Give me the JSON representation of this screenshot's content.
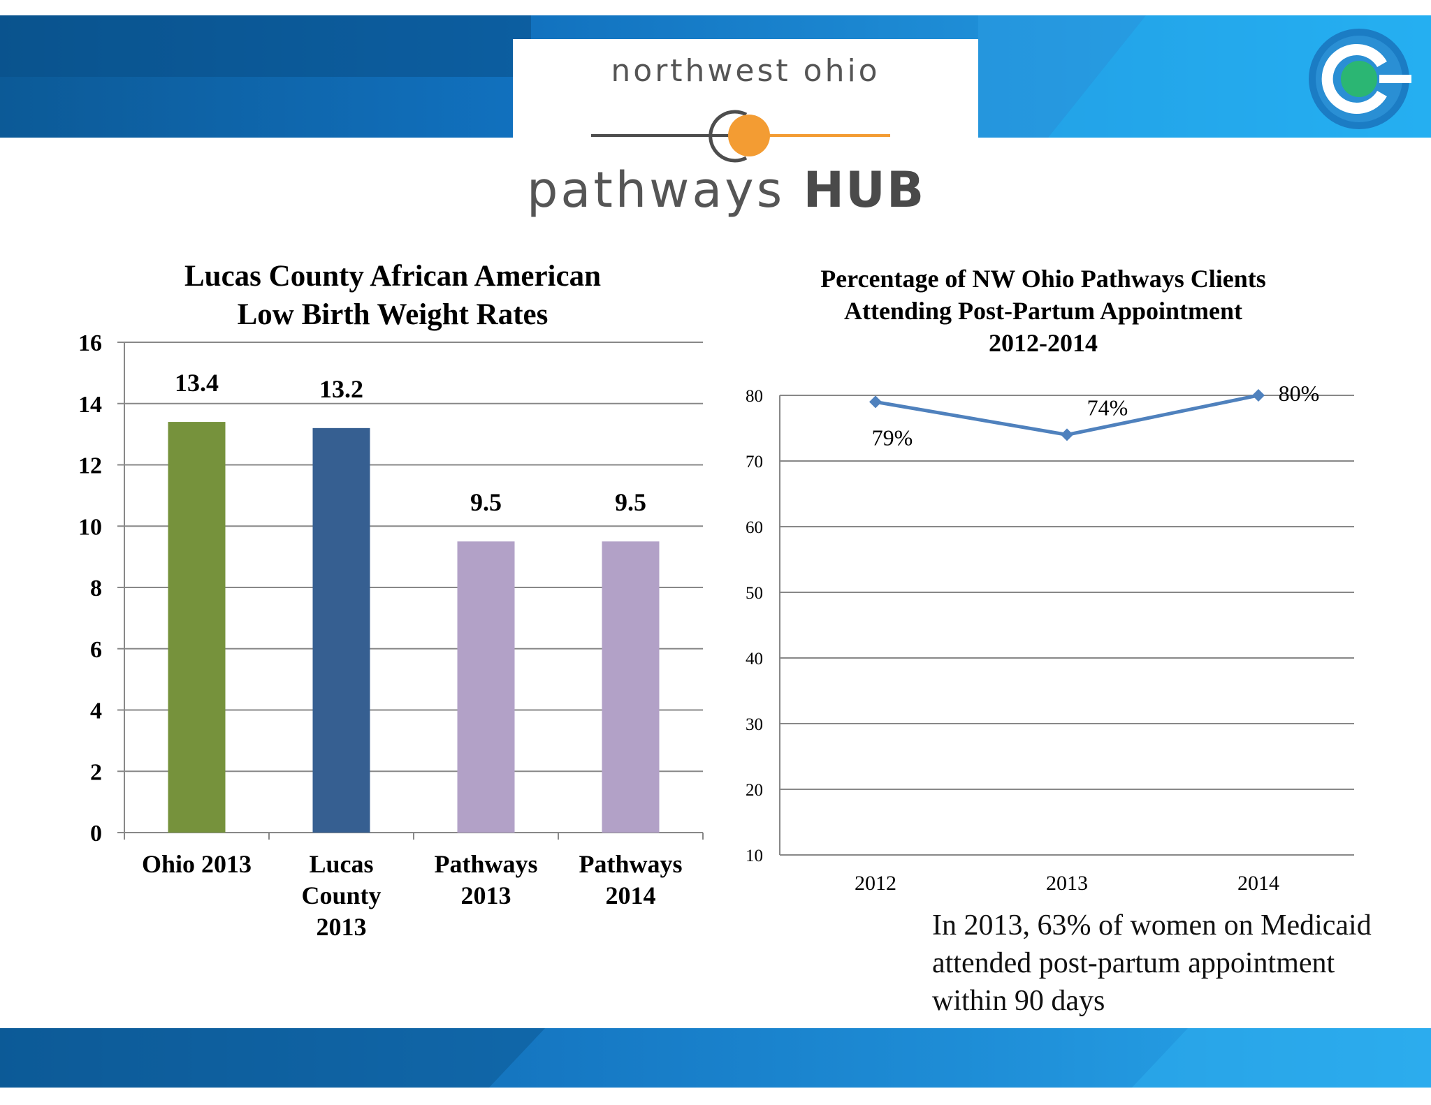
{
  "logo": {
    "top_text": "northwest ohio",
    "bottom_text_light": "pathways ",
    "bottom_text_bold": "HUB",
    "line_color": "#4d4d4d",
    "accent_color": "#f39c33"
  },
  "chart_data": [
    {
      "type": "bar",
      "title_lines": [
        "Lucas County African American",
        "Low Birth Weight Rates"
      ],
      "categories": [
        [
          "Ohio 2013"
        ],
        [
          "Lucas",
          "County",
          "2013"
        ],
        [
          "Pathways",
          "2013"
        ],
        [
          "Pathways",
          "2014"
        ]
      ],
      "values": [
        13.4,
        13.2,
        9.5,
        9.5
      ],
      "data_labels": [
        "13.4",
        "13.2",
        "9.5",
        "9.5"
      ],
      "colors": [
        "#76923c",
        "#365f91",
        "#b2a1c7",
        "#b2a1c7"
      ],
      "ylim": [
        0,
        16
      ],
      "yticks": [
        0,
        2,
        4,
        6,
        8,
        10,
        12,
        14,
        16
      ],
      "grid": true,
      "legend": "none"
    },
    {
      "type": "line",
      "title_lines": [
        "Percentage of NW Ohio Pathways Clients",
        "Attending Post-Partum Appointment",
        "2012-2014"
      ],
      "x": [
        "2012",
        "2013",
        "2014"
      ],
      "values": [
        79,
        74,
        80
      ],
      "data_labels": [
        "79%",
        "74%",
        "80%"
      ],
      "color": "#4f81bd",
      "ylim": [
        10,
        80
      ],
      "yticks": [
        10,
        20,
        30,
        40,
        50,
        60,
        70,
        80
      ],
      "grid": true,
      "legend": "none"
    }
  ],
  "note_text": "In 2013, 63% of women on Medicaid attended post-partum appointment within 90 days"
}
